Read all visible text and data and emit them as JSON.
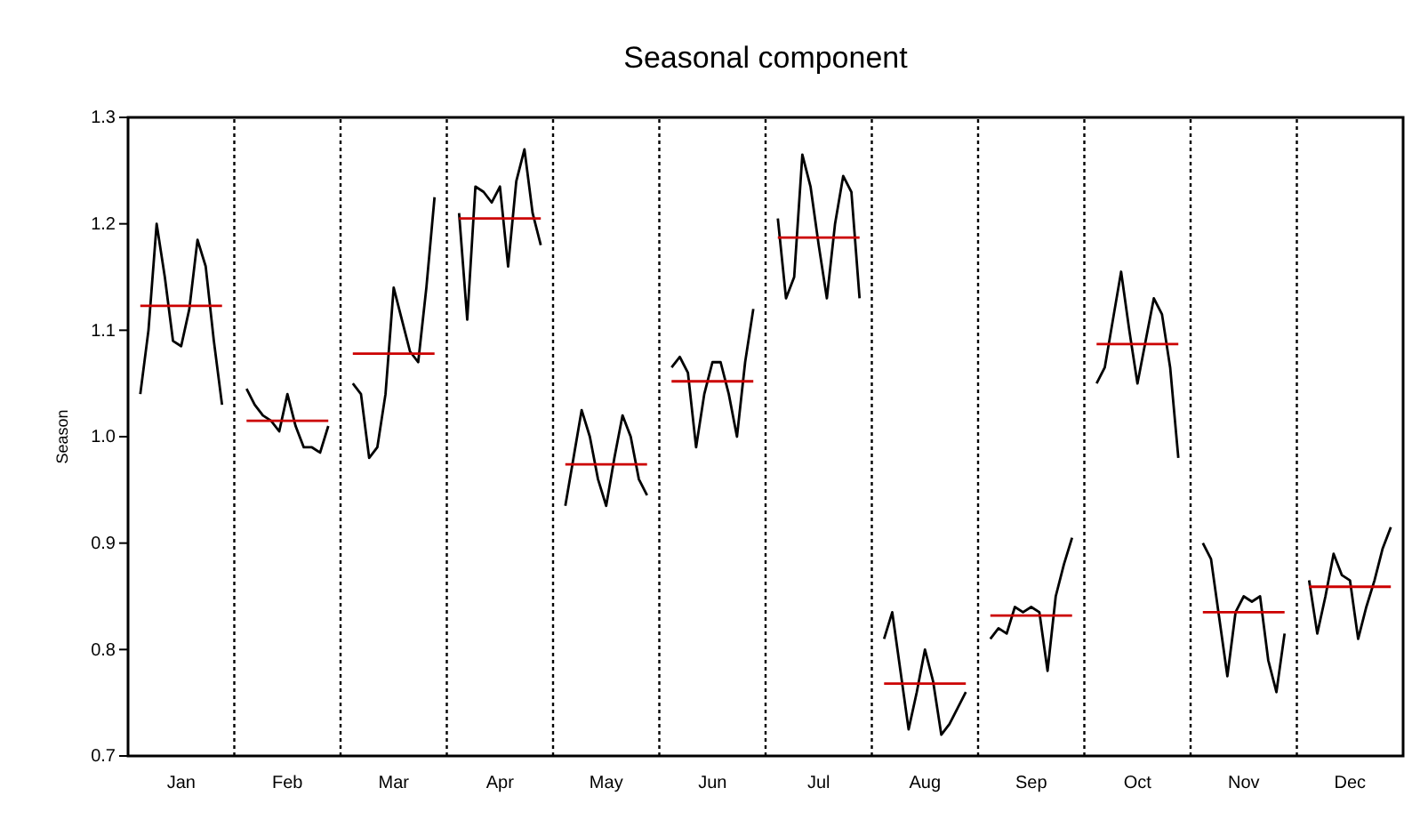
{
  "chart_data": {
    "type": "line",
    "title": "Seasonal component",
    "ylabel": "Season",
    "categories": [
      null,
      null,
      null,
      null,
      null,
      null,
      "Jan",
      null,
      null,
      null,
      null,
      null,
      null,
      null,
      null,
      null,
      null,
      null,
      null,
      "Feb",
      null,
      null,
      null,
      null,
      null,
      null,
      null,
      null,
      null,
      null,
      null,
      null,
      "Mar",
      null,
      null,
      null,
      null,
      null,
      null,
      null,
      null,
      null,
      null,
      null,
      null,
      "Apr",
      null,
      null,
      null,
      null,
      null,
      null,
      null,
      null,
      null,
      null,
      null,
      null,
      "May",
      null,
      null,
      null,
      null,
      null,
      null,
      null,
      null,
      null,
      null,
      null,
      null,
      "Jun",
      null,
      null,
      null,
      null,
      null,
      null,
      null,
      null,
      null,
      null,
      null,
      null,
      "Jul",
      null,
      null,
      null,
      null,
      null,
      null,
      null,
      null,
      null,
      null,
      null,
      null,
      "Aug",
      null,
      null,
      null,
      null,
      null,
      null,
      null,
      null,
      null,
      null,
      null,
      null,
      "Sep",
      null,
      null,
      null,
      null,
      null,
      null,
      null,
      null,
      null,
      null,
      null,
      null,
      "Oct",
      null,
      null,
      null,
      null,
      null,
      null,
      null,
      null,
      null,
      null,
      null,
      null,
      "Nov",
      null,
      null,
      null,
      null,
      null,
      null,
      null,
      null,
      null,
      null,
      null,
      null,
      "Dec",
      null,
      null,
      null,
      null,
      null,
      null
    ],
    "ylim": [
      0.7,
      1.3
    ],
    "yticks": [
      0.7,
      0.8,
      0.9,
      {
        "value": 1,
        "label": "1.0"
      },
      1.1,
      1.2,
      1.3
    ],
    "grid": false,
    "series": [
      {
        "color": "#000000",
        "values": [
          null,
          1.04,
          1.1,
          1.2,
          1.15,
          1.09,
          1.085,
          1.12,
          1.185,
          1.16,
          1.09,
          1.03,
          null,
          null,
          1.045,
          1.03,
          1.02,
          1.015,
          1.005,
          1.04,
          1.01,
          0.99,
          0.99,
          0.985,
          1.01,
          null,
          null,
          1.05,
          1.04,
          0.98,
          0.99,
          1.04,
          1.14,
          1.11,
          1.08,
          1.07,
          1.14,
          1.225,
          null,
          null,
          1.21,
          1.11,
          1.235,
          1.23,
          1.22,
          1.235,
          1.16,
          1.24,
          1.27,
          1.21,
          1.18,
          null,
          null,
          0.935,
          0.98,
          1.025,
          1.0,
          0.96,
          0.935,
          0.98,
          1.02,
          1.0,
          0.96,
          0.945,
          null,
          null,
          1.065,
          1.075,
          1.06,
          0.99,
          1.04,
          1.07,
          1.07,
          1.04,
          1.0,
          1.07,
          1.12,
          null,
          null,
          1.205,
          1.13,
          1.15,
          1.265,
          1.235,
          1.18,
          1.13,
          1.2,
          1.245,
          1.23,
          1.13,
          null,
          null,
          0.81,
          0.835,
          0.78,
          0.725,
          0.76,
          0.8,
          0.77,
          0.72,
          0.73,
          0.745,
          0.76,
          null,
          null,
          0.81,
          0.82,
          0.815,
          0.84,
          0.835,
          0.84,
          0.835,
          0.78,
          0.85,
          0.88,
          0.905,
          null,
          null,
          1.05,
          1.065,
          1.11,
          1.155,
          1.1,
          1.05,
          1.09,
          1.13,
          1.115,
          1.065,
          0.98,
          null,
          null,
          0.9,
          0.885,
          0.83,
          0.775,
          0.835,
          0.85,
          0.845,
          0.85,
          0.79,
          0.76,
          0.815,
          null,
          null,
          0.865,
          0.815,
          0.85,
          0.89,
          0.87,
          0.865,
          0.81,
          0.84,
          0.865,
          0.895,
          0.915,
          null
        ]
      },
      {
        "color": "#cc0000",
        "values": [
          null,
          1.123,
          1.123,
          1.123,
          1.123,
          1.123,
          1.123,
          1.123,
          1.123,
          1.123,
          1.123,
          1.123,
          null,
          null,
          1.015,
          1.015,
          1.015,
          1.015,
          1.015,
          1.015,
          1.015,
          1.015,
          1.015,
          1.015,
          1.015,
          null,
          null,
          1.078,
          1.078,
          1.078,
          1.078,
          1.078,
          1.078,
          1.078,
          1.078,
          1.078,
          1.078,
          1.078,
          null,
          null,
          1.205,
          1.205,
          1.205,
          1.205,
          1.205,
          1.205,
          1.205,
          1.205,
          1.205,
          1.205,
          1.205,
          null,
          null,
          0.974,
          0.974,
          0.974,
          0.974,
          0.974,
          0.974,
          0.974,
          0.974,
          0.974,
          0.974,
          0.974,
          null,
          null,
          1.052,
          1.052,
          1.052,
          1.052,
          1.052,
          1.052,
          1.052,
          1.052,
          1.052,
          1.052,
          1.052,
          null,
          null,
          1.187,
          1.187,
          1.187,
          1.187,
          1.187,
          1.187,
          1.187,
          1.187,
          1.187,
          1.187,
          1.187,
          null,
          null,
          0.768,
          0.768,
          0.768,
          0.768,
          0.768,
          0.768,
          0.768,
          0.768,
          0.768,
          0.768,
          0.768,
          null,
          null,
          0.832,
          0.832,
          0.832,
          0.832,
          0.832,
          0.832,
          0.832,
          0.832,
          0.832,
          0.832,
          0.832,
          null,
          null,
          1.087,
          1.087,
          1.087,
          1.087,
          1.087,
          1.087,
          1.087,
          1.087,
          1.087,
          1.087,
          1.087,
          null,
          null,
          0.835,
          0.835,
          0.835,
          0.835,
          0.835,
          0.835,
          0.835,
          0.835,
          0.835,
          0.835,
          0.835,
          null,
          null,
          0.859,
          0.859,
          0.859,
          0.859,
          0.859,
          0.859,
          0.859,
          0.859,
          0.859,
          0.859,
          0.859,
          null
        ]
      }
    ]
  }
}
